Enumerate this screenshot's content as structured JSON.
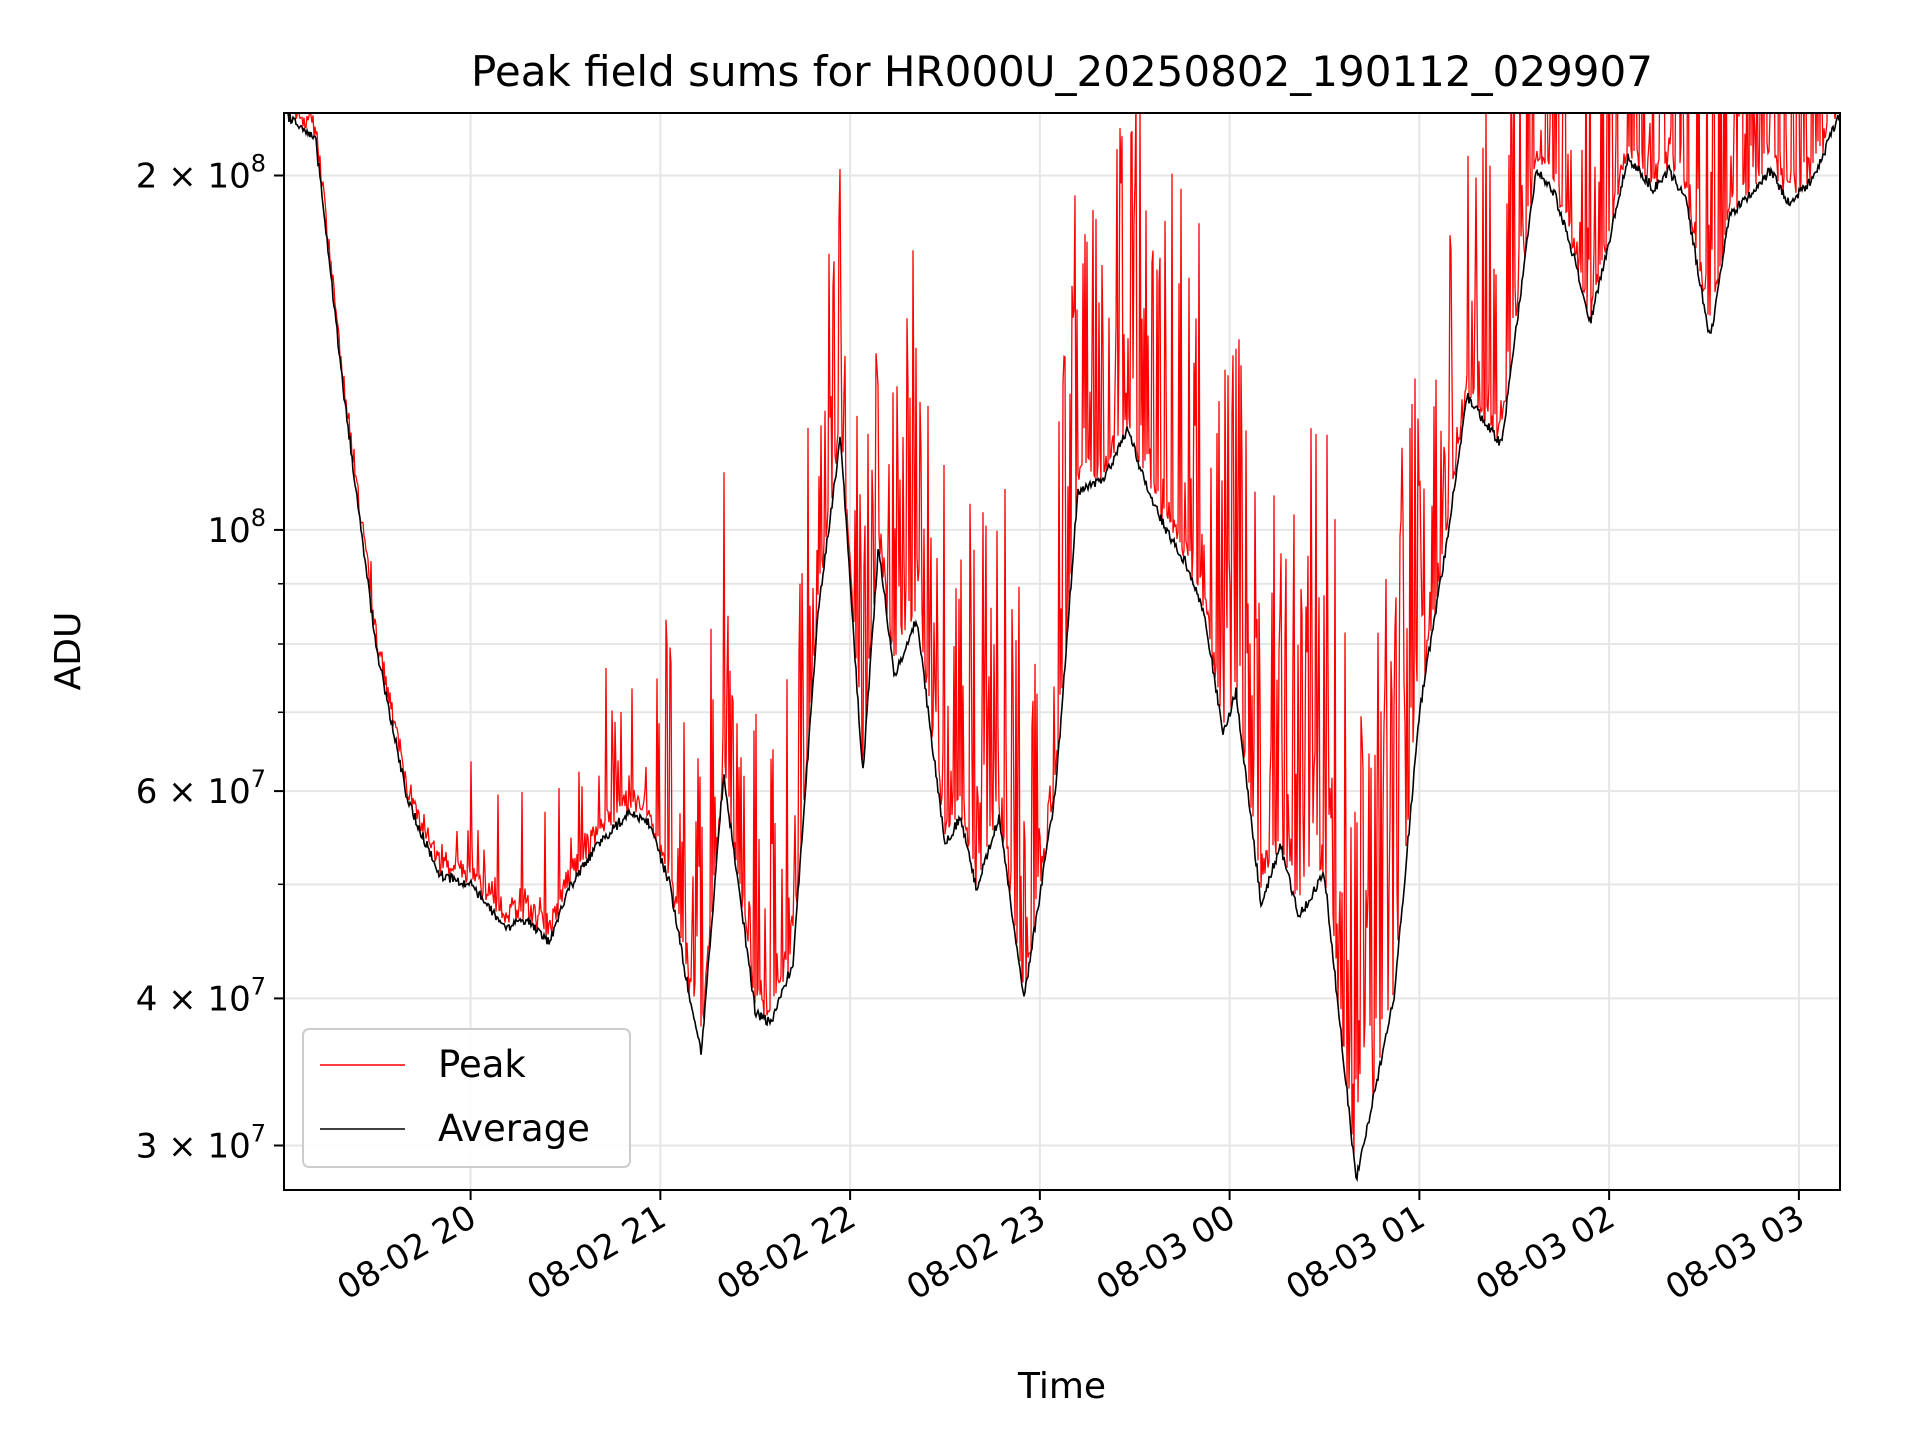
{
  "chart_data": {
    "type": "line",
    "title": "Peak field sums for HR000U_20250802_190112_029907",
    "xlabel": "Time",
    "ylabel": "ADU",
    "y_scale": "log",
    "grid": true,
    "legend_position": "lower-left",
    "xlim": [
      "2025-08-02 19:01",
      "2025-08-03 03:13"
    ],
    "ylim": [
      27500000,
      226000000
    ],
    "x_tick_labels": [
      "08-02 20",
      "08-02 21",
      "08-02 22",
      "08-02 23",
      "08-03 00",
      "08-03 01",
      "08-03 02",
      "08-03 03"
    ],
    "y_tick_labels": [
      {
        "mantissa": "2 × 10",
        "exp": "8"
      },
      {
        "mantissa": "10",
        "exp": "8"
      },
      {
        "mantissa": "6 × 10",
        "exp": "7"
      },
      {
        "mantissa": "4 × 10",
        "exp": "7"
      },
      {
        "mantissa": "3 × 10",
        "exp": "7"
      }
    ],
    "series": [
      {
        "name": "Average",
        "color": "#000000",
        "x": [
          "2025-08-02 19:01",
          "2025-08-02 19:11",
          "2025-08-02 19:20",
          "2025-08-02 19:30",
          "2025-08-02 19:40",
          "2025-08-02 19:50",
          "2025-08-02 20:00",
          "2025-08-02 20:11",
          "2025-08-02 20:18",
          "2025-08-02 20:25",
          "2025-08-02 20:31",
          "2025-08-02 20:40",
          "2025-08-02 20:50",
          "2025-08-02 20:56",
          "2025-08-02 21:03",
          "2025-08-02 21:10",
          "2025-08-02 21:13",
          "2025-08-02 21:20",
          "2025-08-02 21:30",
          "2025-08-02 21:35",
          "2025-08-02 21:42",
          "2025-08-02 21:50",
          "2025-08-02 21:57",
          "2025-08-02 22:04",
          "2025-08-02 22:09",
          "2025-08-02 22:14",
          "2025-08-02 22:21",
          "2025-08-02 22:30",
          "2025-08-02 22:35",
          "2025-08-02 22:40",
          "2025-08-02 22:47",
          "2025-08-02 22:55",
          "2025-08-02 23:05",
          "2025-08-02 23:12",
          "2025-08-02 23:20",
          "2025-08-02 23:28",
          "2025-08-02 23:33",
          "2025-08-02 23:40",
          "2025-08-02 23:46",
          "2025-08-02 23:52",
          "2025-08-02 23:58",
          "2025-08-03 00:02",
          "2025-08-03 00:10",
          "2025-08-03 00:16",
          "2025-08-03 00:22",
          "2025-08-03 00:30",
          "2025-08-03 00:40",
          "2025-08-03 00:52",
          "2025-08-03 01:00",
          "2025-08-03 01:08",
          "2025-08-03 01:15",
          "2025-08-03 01:26",
          "2025-08-03 01:37",
          "2025-08-03 01:43",
          "2025-08-03 01:49",
          "2025-08-03 01:54",
          "2025-08-03 02:06",
          "2025-08-03 02:14",
          "2025-08-03 02:19",
          "2025-08-03 02:24",
          "2025-08-03 02:32",
          "2025-08-03 02:38",
          "2025-08-03 02:45",
          "2025-08-03 02:51",
          "2025-08-03 02:57",
          "2025-08-03 03:05",
          "2025-08-03 03:13"
        ],
        "y": [
          226000000,
          215000000,
          130000000,
          80000000,
          59000000,
          51000000,
          50000000,
          46000000,
          46500000,
          44700000,
          49500000,
          54000000,
          57500000,
          56700000,
          50000000,
          39000000,
          36000000,
          62000000,
          39000000,
          38000000,
          43000000,
          86000000,
          120000000,
          62000000,
          97000000,
          75000000,
          84000000,
          54000000,
          57000000,
          49500000,
          57000000,
          40000000,
          60000000,
          108000000,
          110000000,
          122000000,
          110000000,
          100000000,
          94000000,
          85000000,
          67000000,
          73000000,
          48000000,
          54000000,
          47000000,
          51000000,
          28000000,
          40000000,
          70000000,
          95000000,
          130000000,
          118000000,
          203000000,
          192000000,
          170000000,
          150000000,
          207000000,
          195000000,
          202000000,
          192000000,
          145000000,
          185000000,
          193000000,
          202000000,
          189000000,
          200000000,
          226000000
        ]
      },
      {
        "name": "Peak",
        "color": "#ff0000"
      }
    ]
  }
}
